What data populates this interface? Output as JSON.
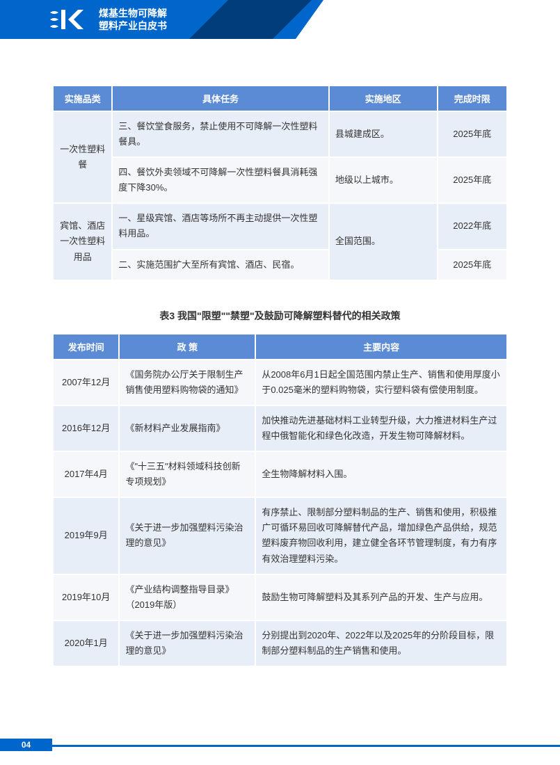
{
  "header": {
    "logo_mark": "EK",
    "title_line1": "煤基生物可降解",
    "title_line2": "塑料产业白皮书"
  },
  "colors": {
    "primary_blue": "#0066cc",
    "dark_blue": "#003d7a",
    "header_cell": "#5b8bd4",
    "row_light": "#f5f7fb",
    "row_dark": "#e8eef7",
    "text": "#333333",
    "white": "#ffffff"
  },
  "table1": {
    "headers": [
      "实施品类",
      "具体任务",
      "实施地区",
      "完成时限"
    ],
    "rows": [
      {
        "category": "一次性塑料餐",
        "category_rowspan": 2,
        "task": "三、餐饮堂食服务，禁止使用不可降解一次性塑料餐具。",
        "region": "县城建成区。",
        "deadline": "2025年底",
        "alt": false
      },
      {
        "task": "四、餐饮外卖领域不可降解一次性塑料餐具消耗强度下降30%。",
        "region": "地级以上城市。",
        "deadline": "2025年底",
        "alt": true
      },
      {
        "category": "宾馆、酒店一次性塑料用品",
        "category_rowspan": 2,
        "task": "一、星级宾馆、酒店等场所不再主动提供一次性塑料用品。",
        "region": "全国范围。",
        "region_rowspan": 2,
        "deadline": "2022年底",
        "alt": false
      },
      {
        "task": "二、实施范围扩大至所有宾馆、酒店、民宿。",
        "deadline": "2025年底",
        "alt": true
      }
    ]
  },
  "table2_title": "表3 我国\"限塑\"\"禁塑\"及鼓励可降解塑料替代的相关政策",
  "table2": {
    "headers": [
      "发布时间",
      "政 策",
      "主要内容"
    ],
    "rows": [
      {
        "date": "2007年12月",
        "policy": "《国务院办公厅关于限制生产销售使用塑料购物袋的通知》",
        "content": "从2008年6月1日起全国范围内禁止生产、销售和使用厚度小于0.025毫米的塑料购物袋，实行塑料袋有偿使用制度。",
        "alt": false
      },
      {
        "date": "2016年12月",
        "policy": "《新材料产业发展指南》",
        "content": "加快推动先进基础材料工业转型升级，大力推进材料生产过程中俄智能化和绿色化改造，开发生物可降解材料。",
        "alt": true
      },
      {
        "date": "2017年4月",
        "policy": "《\"十三五\"材料领域科技创新专项规划》",
        "content": "全生物降解材料入围。",
        "alt": false
      },
      {
        "date": "2019年9月",
        "policy": "《关于进一步加强塑料污染治理的意见》",
        "content": "有序禁止、限制部分塑料制品的生产、销售和使用，积极推广可循环易回收可降解替代产品，增加绿色产品供给，规范塑料废弃物回收利用，建立健全各环节管理制度，有力有序有效治理塑料污染。",
        "alt": true
      },
      {
        "date": "2019年10月",
        "policy": "《产业结构调整指导目录》（2019年版）",
        "content": "鼓励生物可降解塑料及其系列产品的开发、生产与应用。",
        "alt": false
      },
      {
        "date": "2020年1月",
        "policy": "《关于进一步加强塑料污染治理的意见》",
        "content": "分别提出到2020年、2022年以及2025年的分阶段目标，限制部分塑料制品的生产销售和使用。",
        "alt": true
      }
    ]
  },
  "page_number": "04"
}
